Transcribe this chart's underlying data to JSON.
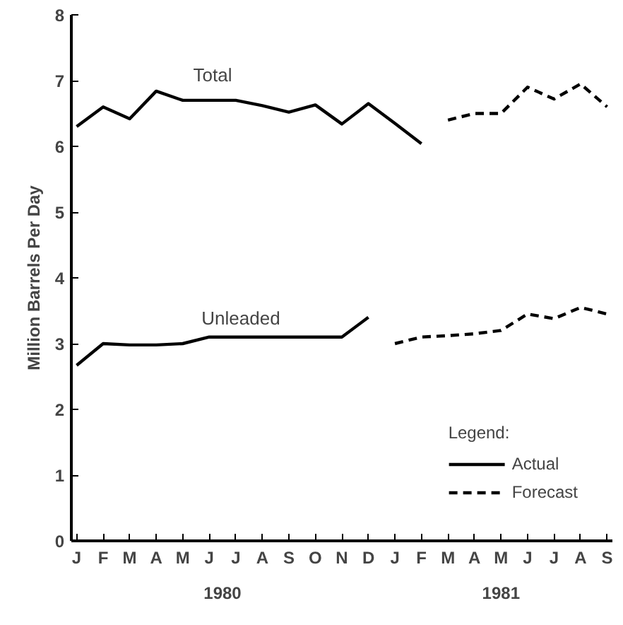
{
  "chart_data": {
    "type": "line",
    "ylabel": "Million Barrels Per Day",
    "legend_title": "Legend:",
    "legend": "bottom right",
    "grid": false,
    "marker": "none",
    "categories": [
      "J",
      "F",
      "M",
      "A",
      "M",
      "J",
      "J",
      "A",
      "S",
      "O",
      "N",
      "D",
      "J",
      "F",
      "M",
      "A",
      "M",
      "J",
      "J",
      "A",
      "S"
    ],
    "ylim": [
      0,
      8
    ],
    "yticks": [
      0,
      1,
      2,
      3,
      4,
      5,
      6,
      7,
      8
    ],
    "series": [
      {
        "name": "Actual",
        "color": "#000000",
        "line_style": "solid",
        "values": [
          6.3,
          6.6,
          6.42,
          6.84,
          6.7,
          6.7,
          6.7,
          6.62,
          6.52,
          6.63,
          6.34,
          6.65,
          6.35,
          6.04,
          null,
          null,
          null,
          null,
          null,
          null,
          null
        ]
      },
      {
        "name": "Forecast",
        "color": "#000000",
        "line_style": "dashed",
        "values": [
          null,
          null,
          null,
          null,
          null,
          null,
          null,
          null,
          null,
          null,
          null,
          null,
          null,
          null,
          6.4,
          6.5,
          6.5,
          6.9,
          6.72,
          6.95,
          6.6
        ]
      },
      {
        "color": "#000000",
        "line_style": "solid",
        "values": [
          2.67,
          3.0,
          2.98,
          2.98,
          3.0,
          3.1,
          3.1,
          3.1,
          3.1,
          3.1,
          3.1,
          3.4,
          null,
          null,
          null,
          null,
          null,
          null,
          null,
          null,
          null
        ]
      },
      {
        "color": "#000000",
        "line_style": "dashed",
        "values": [
          null,
          null,
          null,
          null,
          null,
          null,
          null,
          null,
          null,
          null,
          null,
          null,
          3.0,
          3.1,
          3.12,
          3.15,
          3.2,
          3.45,
          3.38,
          3.55,
          3.45
        ]
      }
    ],
    "annotations": [
      "Total",
      "Unleaded",
      "1980",
      "1981"
    ]
  }
}
